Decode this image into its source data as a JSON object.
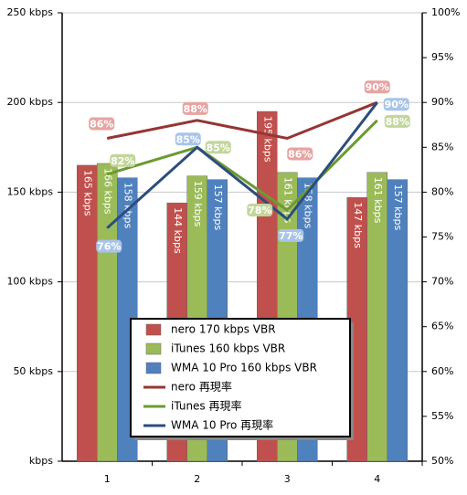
{
  "chart_data": {
    "type": "bar",
    "categories": [
      "1",
      "2",
      "3",
      "4"
    ],
    "ylim": [
      0,
      250
    ],
    "yticks": [
      {
        "value": 0,
        "label": "kbps"
      },
      {
        "value": 50,
        "label": "50 kbps"
      },
      {
        "value": 100,
        "label": "100 kbps"
      },
      {
        "value": 150,
        "label": "150 kbps"
      },
      {
        "value": 200,
        "label": "200 kbps"
      },
      {
        "value": 250,
        "label": "250 kbps"
      }
    ],
    "y2lim": [
      50,
      100
    ],
    "y2ticks": [
      {
        "value": 50,
        "label": "50%"
      },
      {
        "value": 55,
        "label": "55%"
      },
      {
        "value": 60,
        "label": "60%"
      },
      {
        "value": 65,
        "label": "65%"
      },
      {
        "value": 70,
        "label": "70%"
      },
      {
        "value": 75,
        "label": "75%"
      },
      {
        "value": 80,
        "label": "80%"
      },
      {
        "value": 85,
        "label": "85%"
      },
      {
        "value": 90,
        "label": "90%"
      },
      {
        "value": 95,
        "label": "95%"
      },
      {
        "value": 100,
        "label": "100%"
      }
    ],
    "grid": true,
    "series": [
      {
        "name": "nero 170 kbps VBR",
        "type": "bar",
        "color": "#c0504d",
        "values": [
          165,
          144,
          195,
          147
        ],
        "value_labels": [
          "165 kbps",
          "144 kbps",
          "195 kbps",
          "147 kbps"
        ]
      },
      {
        "name": "iTunes 160 kbps VBR",
        "type": "bar",
        "color": "#9bbb59",
        "values": [
          166,
          159,
          161,
          161
        ],
        "value_labels": [
          "166 kbps",
          "159 kbps",
          "161 kbps",
          "161 kbps"
        ]
      },
      {
        "name": "WMA 10 Pro 160 kbps VBR",
        "type": "bar",
        "color": "#4f81bd",
        "values": [
          158,
          157,
          158,
          157
        ],
        "value_labels": [
          "158 kbps",
          "157 kbps",
          "158 kbps",
          "157 kbps"
        ]
      },
      {
        "name": "nero 再現率",
        "type": "line",
        "axis": "y2",
        "color": "#943634",
        "values": [
          86,
          88,
          86,
          90
        ],
        "value_labels": [
          "86%",
          "88%",
          "86%",
          "90%"
        ]
      },
      {
        "name": "iTunes 再現率",
        "type": "line",
        "axis": "y2",
        "color": "#6b9a32",
        "values": [
          82,
          85,
          78,
          88
        ],
        "value_labels": [
          "82%",
          "85%",
          "78%",
          "88%"
        ]
      },
      {
        "name": "WMA 10 Pro 再現率",
        "type": "line",
        "axis": "y2",
        "color": "#2c4d7d",
        "values": [
          76,
          85,
          77,
          90
        ],
        "value_labels": [
          "76%",
          "85%",
          "77%",
          "90%"
        ]
      }
    ]
  }
}
